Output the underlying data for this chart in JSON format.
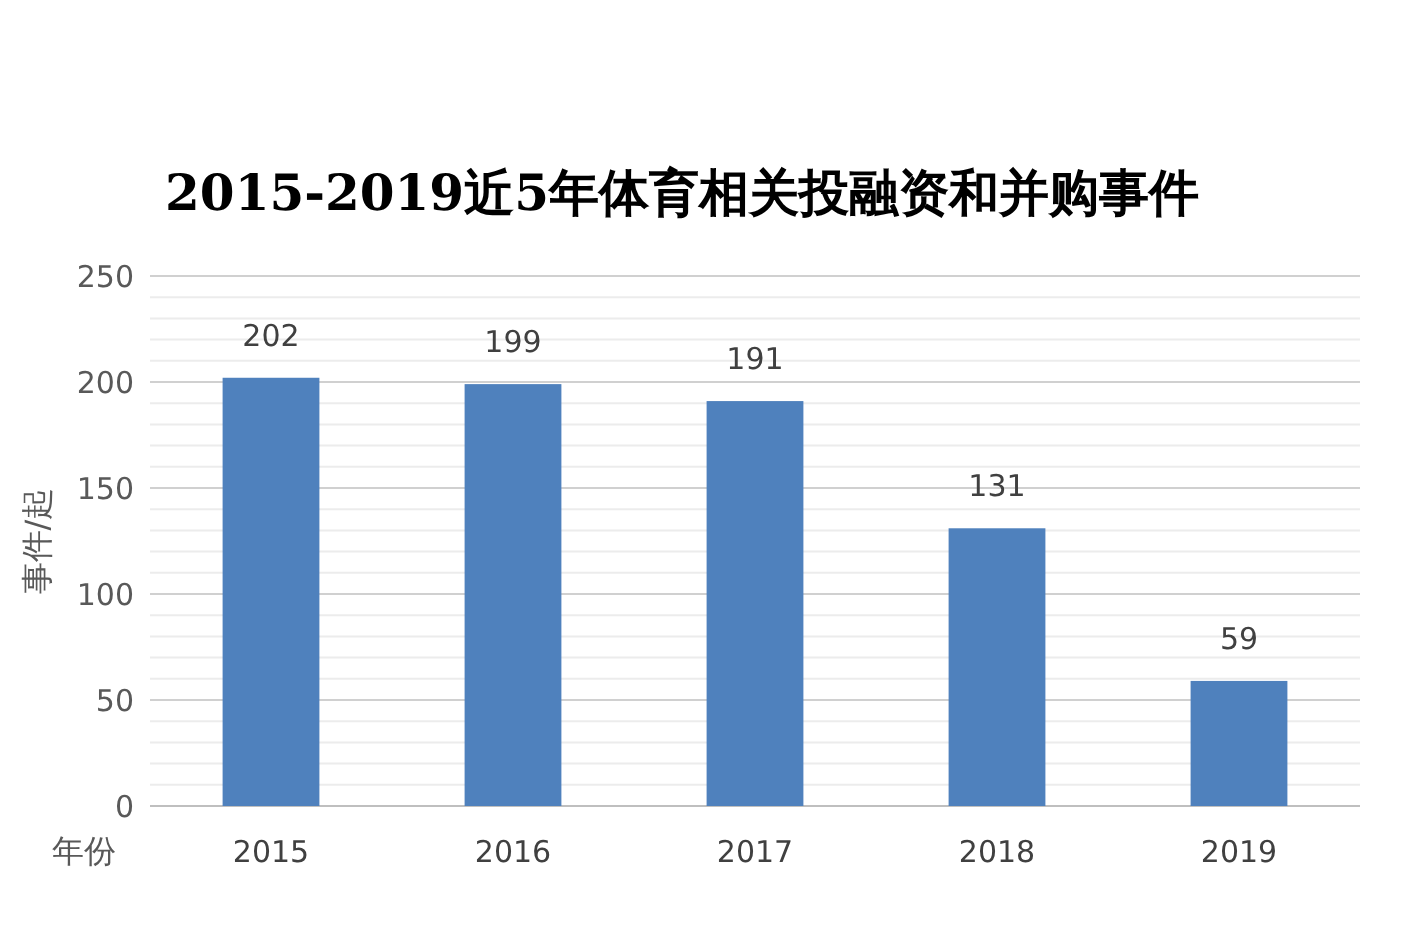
{
  "chart_data": {
    "type": "bar",
    "title": "2015-2019近5年体育相关投融资和并购事件",
    "xlabel": "年份",
    "ylabel": "事件/起",
    "categories": [
      "2015",
      "2016",
      "2017",
      "2018",
      "2019"
    ],
    "values": [
      202,
      199,
      191,
      131,
      59
    ],
    "color": "#4f81bd",
    "data_labels": true,
    "ylim": [
      0,
      250
    ],
    "yticks": [
      0,
      {
        "value": 10,
        "label": null
      },
      {
        "value": 20,
        "label": null
      },
      {
        "value": 30,
        "label": null
      },
      {
        "value": 40,
        "label": null
      },
      50,
      {
        "value": 60,
        "label": null
      },
      {
        "value": 70,
        "label": null
      },
      {
        "value": 80,
        "label": null
      },
      {
        "value": 90,
        "label": null
      },
      100,
      {
        "value": 110,
        "label": null
      },
      {
        "value": 120,
        "label": null
      },
      {
        "value": 130,
        "label": null
      },
      {
        "value": 140,
        "label": null
      },
      150,
      {
        "value": 160,
        "label": null
      },
      {
        "value": 170,
        "label": null
      },
      {
        "value": 180,
        "label": null
      },
      {
        "value": 190,
        "label": null
      },
      200,
      {
        "value": 210,
        "label": null
      },
      {
        "value": 220,
        "label": null
      },
      {
        "value": 230,
        "label": null
      },
      {
        "value": 240,
        "label": null
      },
      250
    ],
    "grid": "y"
  }
}
